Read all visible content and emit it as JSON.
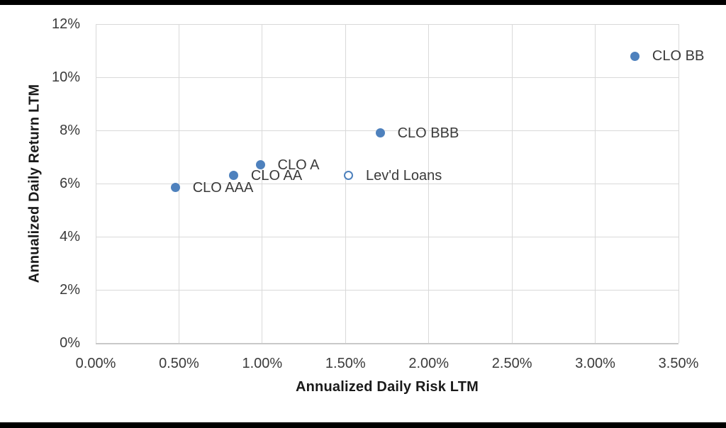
{
  "chart_data": {
    "type": "scatter",
    "title": "",
    "xlabel": "Annualized Daily Risk LTM",
    "ylabel": "Annualized Daily Return LTM",
    "xlim": [
      0,
      3.5
    ],
    "ylim": [
      0,
      12
    ],
    "grid": true,
    "legend_position": "none",
    "x_ticks": [
      {
        "label": "0.00%",
        "value": 0
      },
      {
        "label": "0.50%",
        "value": 0.5
      },
      {
        "label": "1.00%",
        "value": 1
      },
      {
        "label": "1.50%",
        "value": 1.5
      },
      {
        "label": "2.00%",
        "value": 2
      },
      {
        "label": "2.50%",
        "value": 2.5
      },
      {
        "label": "3.00%",
        "value": 3
      },
      {
        "label": "3.50%",
        "value": 3.5
      }
    ],
    "y_ticks": [
      {
        "label": "0%",
        "value": 0
      },
      {
        "label": "2%",
        "value": 2
      },
      {
        "label": "4%",
        "value": 4
      },
      {
        "label": "6%",
        "value": 6
      },
      {
        "label": "8%",
        "value": 8
      },
      {
        "label": "10%",
        "value": 10
      },
      {
        "label": "12%",
        "value": 12
      }
    ],
    "series": [
      {
        "name": "CLO AAA",
        "x": 0.48,
        "y": 5.85,
        "marker": "filled"
      },
      {
        "name": "CLO AA",
        "x": 0.83,
        "y": 6.3,
        "marker": "filled"
      },
      {
        "name": "CLO A",
        "x": 0.99,
        "y": 6.7,
        "marker": "filled"
      },
      {
        "name": "Lev'd Loans",
        "x": 1.52,
        "y": 6.3,
        "marker": "open"
      },
      {
        "name": "CLO BBB",
        "x": 1.71,
        "y": 7.9,
        "marker": "filled"
      },
      {
        "name": "CLO BB",
        "x": 3.24,
        "y": 10.8,
        "marker": "filled"
      }
    ],
    "colors": {
      "marker": "#4e81bd",
      "gridline": "#d9d9d9",
      "axis_line": "#c9c9c9",
      "label_text": "#3a3a3a",
      "title_text": "#1a1a1a"
    }
  }
}
